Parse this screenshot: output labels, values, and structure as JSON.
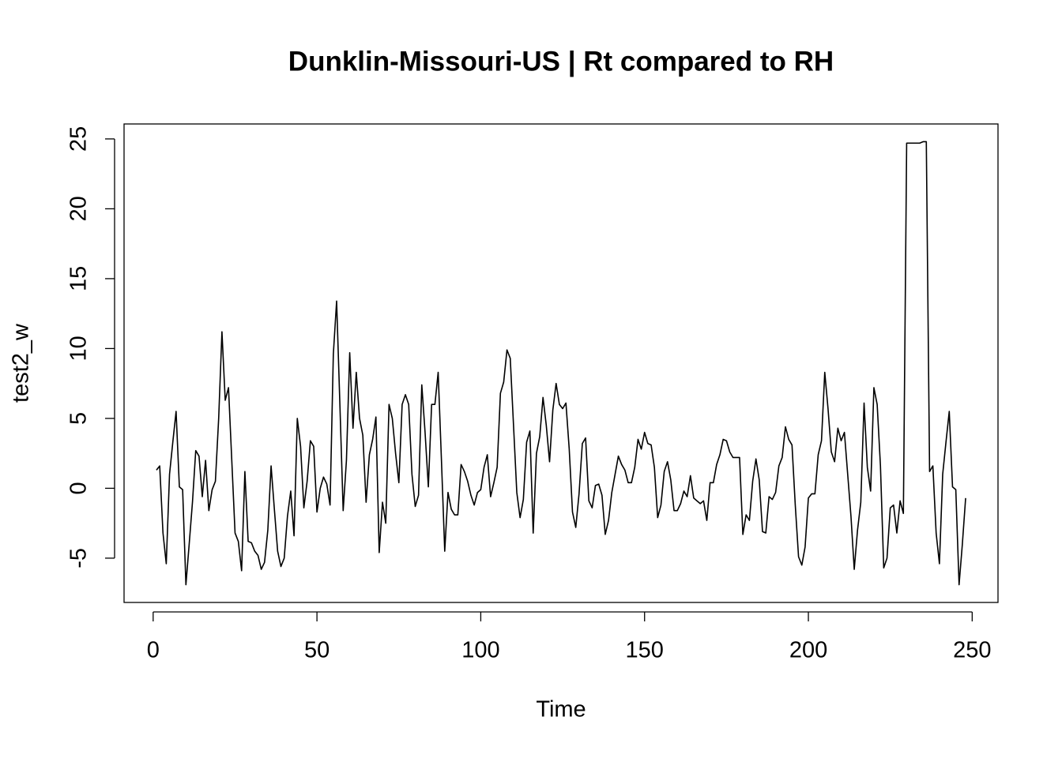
{
  "chart_data": {
    "type": "line",
    "title": "Dunklin-Missouri-US | Rt compared to RH",
    "xlabel": "Time",
    "ylabel": "test2_w",
    "color": "#000000",
    "x": [
      1,
      2,
      3,
      4,
      5,
      6,
      7,
      8,
      9,
      10,
      11,
      12,
      13,
      14,
      15,
      16,
      17,
      18,
      19,
      20,
      21,
      22,
      23,
      24,
      25,
      26,
      27,
      28,
      29,
      30,
      31,
      32,
      33,
      34,
      35,
      36,
      37,
      38,
      39,
      40,
      41,
      42,
      43,
      44,
      45,
      46,
      47,
      48,
      49,
      50,
      51,
      52,
      53,
      54,
      55,
      56,
      57,
      58,
      59,
      60,
      61,
      62,
      63,
      64,
      65,
      66,
      67,
      68,
      69,
      70,
      71,
      72,
      73,
      74,
      75,
      76,
      77,
      78,
      79,
      80,
      81,
      82,
      83,
      84,
      85,
      86,
      87,
      88,
      89,
      90,
      91,
      92,
      93,
      94,
      95,
      96,
      97,
      98,
      99,
      100,
      101,
      102,
      103,
      104,
      105,
      106,
      107,
      108,
      109,
      110,
      111,
      112,
      113,
      114,
      115,
      116,
      117,
      118,
      119,
      120,
      121,
      122,
      123,
      124,
      125,
      126,
      127,
      128,
      129,
      130,
      131,
      132,
      133,
      134,
      135,
      136,
      137,
      138,
      139,
      140,
      141,
      142,
      143,
      144,
      145,
      146,
      147,
      148,
      149,
      150,
      151,
      152,
      153,
      154,
      155,
      156,
      157,
      158,
      159,
      160,
      161,
      162,
      163,
      164,
      165,
      166,
      167,
      168,
      169,
      170,
      171,
      172,
      173,
      174,
      175,
      176,
      177,
      178,
      179,
      180,
      181,
      182,
      183,
      184,
      185,
      186,
      187,
      188,
      189,
      190,
      191,
      192,
      193,
      194,
      195,
      196,
      197,
      198,
      199,
      200,
      201,
      202,
      203,
      204,
      205,
      206,
      207,
      208,
      209,
      210,
      211,
      212,
      213,
      214,
      215,
      216,
      217,
      218,
      219,
      220,
      221,
      222,
      223,
      224,
      225,
      226,
      227,
      228,
      229,
      230,
      231,
      232,
      233,
      234,
      235,
      236,
      237,
      238,
      239,
      240,
      241,
      242,
      243,
      244,
      245,
      246,
      247,
      248
    ],
    "values": [
      1.3,
      1.6,
      -3.2,
      -5.4,
      1.0,
      3.3,
      5.5,
      0.1,
      -0.1,
      -6.9,
      -4.0,
      -1.0,
      2.7,
      2.3,
      -0.6,
      2.0,
      -1.6,
      -0.1,
      0.5,
      5.0,
      11.2,
      6.3,
      7.2,
      2.0,
      -3.2,
      -3.8,
      -5.9,
      1.2,
      -3.8,
      -3.9,
      -4.5,
      -4.8,
      -5.8,
      -5.3,
      -3.0,
      1.6,
      -1.5,
      -4.5,
      -5.6,
      -5.0,
      -2.0,
      -0.2,
      -3.4,
      5.0,
      3.0,
      -1.4,
      0.5,
      3.4,
      3.0,
      -1.7,
      0.0,
      0.8,
      0.3,
      -1.2,
      9.6,
      13.4,
      6.0,
      -1.6,
      2.0,
      9.7,
      4.3,
      8.3,
      5.0,
      3.8,
      -1.0,
      2.4,
      3.5,
      5.1,
      -4.6,
      -1.0,
      -2.5,
      6.0,
      5.0,
      2.5,
      0.4,
      6.0,
      6.7,
      6.0,
      1.0,
      -1.3,
      -0.5,
      7.4,
      4.0,
      0.1,
      6.0,
      6.0,
      8.3,
      2.0,
      -4.5,
      -0.3,
      -1.5,
      -1.9,
      -1.9,
      1.7,
      1.2,
      0.5,
      -0.5,
      -1.2,
      -0.3,
      -0.1,
      1.5,
      2.4,
      -0.6,
      0.4,
      1.5,
      6.8,
      7.6,
      9.9,
      9.3,
      4.5,
      -0.3,
      -2.1,
      -0.8,
      3.3,
      4.1,
      -3.2,
      2.5,
      3.7,
      6.5,
      4.5,
      1.9,
      5.6,
      7.5,
      6.0,
      5.7,
      6.1,
      2.8,
      -1.7,
      -2.8,
      -0.4,
      3.2,
      3.6,
      -0.9,
      -1.4,
      0.2,
      0.3,
      -0.5,
      -3.3,
      -2.3,
      -0.3,
      1.0,
      2.3,
      1.7,
      1.3,
      0.4,
      0.4,
      1.5,
      3.5,
      2.8,
      4.0,
      3.2,
      3.1,
      1.5,
      -2.1,
      -1.2,
      1.2,
      1.9,
      0.6,
      -1.6,
      -1.6,
      -1.1,
      -0.2,
      -0.6,
      0.9,
      -0.7,
      -0.9,
      -1.1,
      -0.9,
      -2.3,
      0.4,
      0.4,
      1.7,
      2.4,
      3.5,
      3.4,
      2.6,
      2.2,
      2.2,
      2.2,
      -3.3,
      -1.9,
      -2.3,
      0.5,
      2.1,
      0.6,
      -3.1,
      -3.2,
      -0.6,
      -0.8,
      -0.3,
      1.6,
      2.2,
      4.4,
      3.5,
      3.1,
      -1.2,
      -4.9,
      -5.5,
      -4.2,
      -0.7,
      -0.4,
      -0.4,
      2.4,
      3.4,
      8.3,
      5.7,
      2.6,
      1.9,
      4.3,
      3.4,
      4.0,
      1.0,
      -2.0,
      -5.8,
      -3.0,
      -1.0,
      6.1,
      1.5,
      -0.2,
      7.2,
      6.0,
      1.6,
      -5.7,
      -5.0,
      -1.4,
      -1.2,
      -3.2,
      -0.9,
      -1.8,
      24.7,
      24.7,
      24.7,
      24.7,
      24.7,
      24.8,
      24.8,
      1.2,
      1.6,
      -3.2,
      -5.4,
      1.0,
      3.3,
      5.5,
      0.1,
      -0.1,
      -6.9,
      -4.0,
      -0.7
    ],
    "xlim": [
      -8.88,
      257.88
    ],
    "xticks": [
      0,
      50,
      100,
      150,
      200,
      250
    ],
    "ylim": [
      -8.17,
      26.07
    ],
    "yticks": [
      -5,
      0,
      5,
      10,
      15,
      20,
      25
    ]
  }
}
